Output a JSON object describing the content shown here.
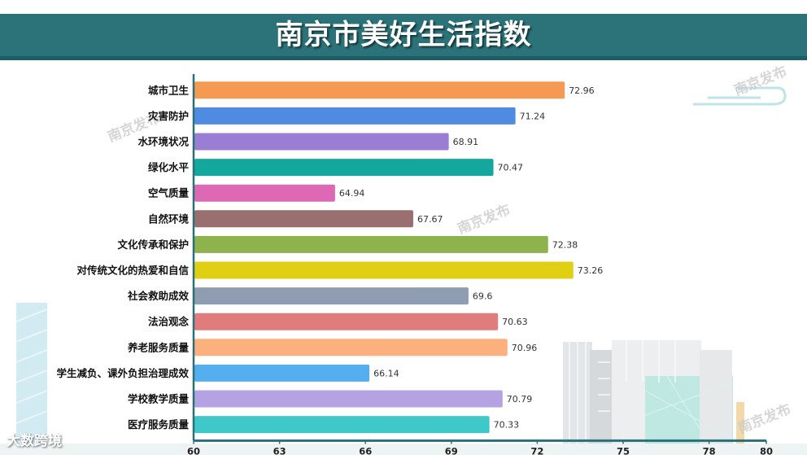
{
  "header": {
    "title": "南京市美好生活指数"
  },
  "watermarks": {
    "text": "南京发布"
  },
  "logo": {
    "text": "大数跨境"
  },
  "chart_data": {
    "type": "bar",
    "orientation": "horizontal",
    "title": "南京市美好生活指数",
    "categories": [
      "城市卫生",
      "灾害防护",
      "水环境状况",
      "绿化水平",
      "空气质量",
      "自然环境",
      "文化传承和保护",
      "对传统文化的热爱和自信",
      "社会救助成效",
      "法治观念",
      "养老服务质量",
      "学生减负、课外负担治理成效",
      "学校教学质量",
      "医疗服务质量"
    ],
    "values": [
      72.96,
      71.24,
      68.91,
      70.47,
      64.94,
      67.67,
      72.38,
      73.26,
      69.6,
      70.63,
      70.96,
      66.14,
      70.79,
      70.33
    ],
    "value_labels": [
      "72.96",
      "71.24",
      "68.91",
      "70.47",
      "64.94",
      "67.67",
      "72.38",
      "73.26",
      "69.6",
      "70.63",
      "70.96",
      "66.14",
      "70.79",
      "70.33"
    ],
    "colors": [
      "#f59a52",
      "#4f8be0",
      "#9a7ed4",
      "#14a79d",
      "#dd68b4",
      "#9a6f70",
      "#8db24e",
      "#e1cf14",
      "#8f9db2",
      "#e07c7c",
      "#fcb07e",
      "#55aef0",
      "#b4a2e2",
      "#3ec8c8"
    ],
    "xlim": [
      60,
      80
    ],
    "xticks": [
      "60",
      "63",
      "66",
      "69",
      "72",
      "75",
      "78",
      "80"
    ],
    "legend": "none",
    "grid": false
  }
}
